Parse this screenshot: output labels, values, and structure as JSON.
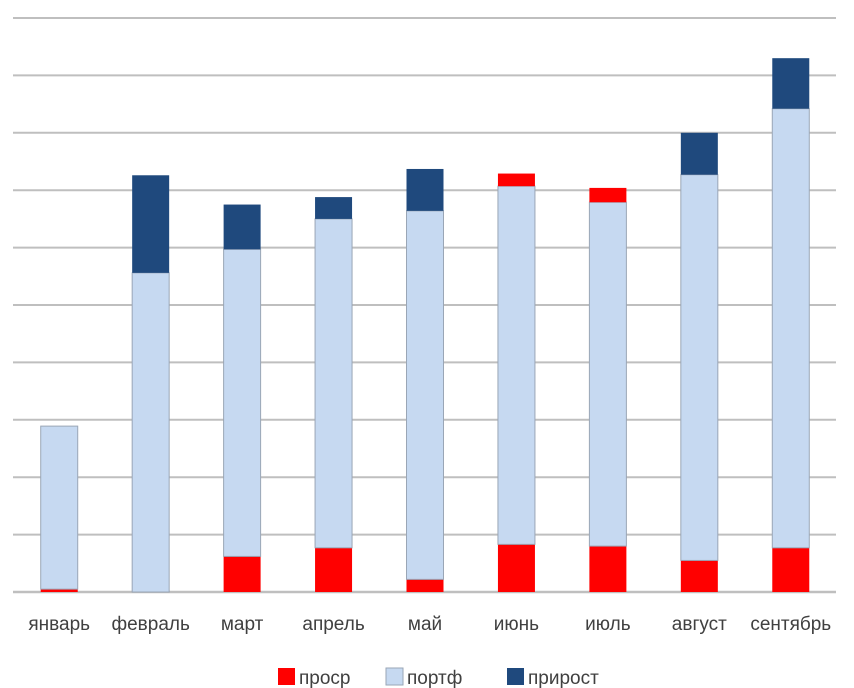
{
  "chart_data": {
    "type": "bar",
    "stacked": true,
    "title": "",
    "xlabel": "",
    "ylabel": "",
    "grid": true,
    "legend_position": "bottom",
    "ylim": [
      0,
      10
    ],
    "categories": [
      "январь",
      "февраль",
      "март",
      "апрель",
      "май",
      "июнь",
      "июль",
      "август",
      "сентябрь"
    ],
    "series": [
      {
        "name": "проср",
        "color": "#ff0000",
        "values": [
          0.05,
          0.0,
          0.62,
          0.77,
          0.22,
          0.83,
          0.8,
          0.55,
          0.77
        ]
      },
      {
        "name": "портф",
        "color": "#c6d9f1",
        "values": [
          2.84,
          5.56,
          5.35,
          5.73,
          6.42,
          6.24,
          5.99,
          6.72,
          7.65
        ]
      },
      {
        "name": "прирост",
        "color": "#1f497d",
        "values": [
          0.0,
          1.7,
          0.78,
          0.38,
          0.73,
          0.0,
          0.0,
          0.73,
          0.88
        ]
      }
    ],
    "july_extra_proср_top": 0.25
  }
}
